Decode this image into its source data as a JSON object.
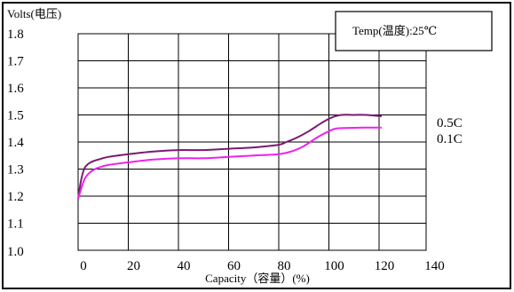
{
  "chart_data": {
    "type": "line",
    "title": "",
    "ylabel": "Volts(电压)",
    "xlabel": "Capacity（容量）(%)",
    "annotation": "Temp(温度):25℃",
    "xlim": [
      0,
      140
    ],
    "ylim": [
      1.0,
      1.8
    ],
    "x_ticks": [
      {
        "value": 0,
        "label": "0"
      },
      {
        "value": 20,
        "label": "20"
      },
      {
        "value": 40,
        "label": "40"
      },
      {
        "value": 60,
        "label": "60"
      },
      {
        "value": 80,
        "label": "80"
      },
      {
        "value": 100,
        "label": "100"
      },
      {
        "value": 120,
        "label": "120"
      },
      {
        "value": 140,
        "label": "140"
      }
    ],
    "y_ticks": [
      {
        "value": 1.0,
        "label": "1.0"
      },
      {
        "value": 1.1,
        "label": "1.1"
      },
      {
        "value": 1.2,
        "label": "1.2"
      },
      {
        "value": 1.3,
        "label": "1.3"
      },
      {
        "value": 1.4,
        "label": "1.4"
      },
      {
        "value": 1.5,
        "label": "1.5"
      },
      {
        "value": 1.6,
        "label": "1.6"
      },
      {
        "value": 1.7,
        "label": "1.7"
      },
      {
        "value": 1.8,
        "label": "1.8"
      }
    ],
    "grid": true,
    "series": [
      {
        "name": "0.5C",
        "color": "#7a1a74",
        "x": [
          0,
          1,
          2,
          3,
          5,
          8,
          12,
          20,
          30,
          40,
          50,
          60,
          70,
          80,
          83,
          87,
          92,
          97,
          101,
          105,
          110,
          115,
          121
        ],
        "y": [
          1.19,
          1.25,
          1.29,
          1.31,
          1.325,
          1.335,
          1.345,
          1.355,
          1.365,
          1.37,
          1.37,
          1.375,
          1.38,
          1.39,
          1.4,
          1.415,
          1.44,
          1.47,
          1.49,
          1.5,
          1.5,
          1.5,
          1.495
        ]
      },
      {
        "name": "0.1C",
        "color": "#ee22ee",
        "x": [
          0,
          1,
          2,
          3,
          5,
          8,
          12,
          20,
          30,
          40,
          50,
          60,
          70,
          80,
          85,
          90,
          95,
          100,
          103,
          108,
          115,
          121
        ],
        "y": [
          1.19,
          1.22,
          1.25,
          1.27,
          1.29,
          1.305,
          1.315,
          1.325,
          1.335,
          1.34,
          1.34,
          1.345,
          1.35,
          1.355,
          1.365,
          1.385,
          1.415,
          1.44,
          1.45,
          1.452,
          1.453,
          1.453
        ]
      }
    ]
  }
}
